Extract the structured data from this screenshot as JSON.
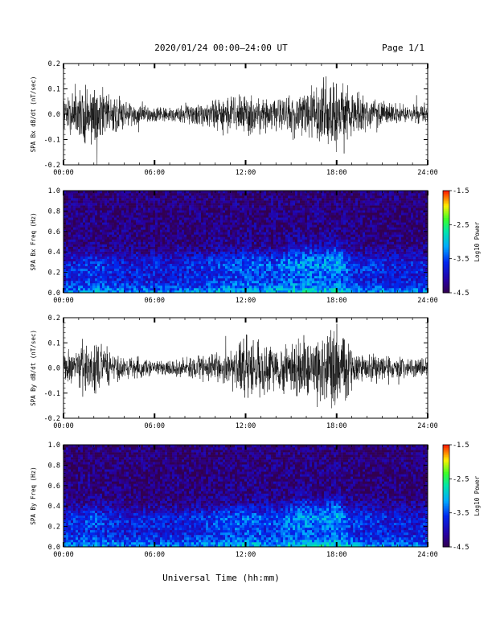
{
  "header": {
    "title": "2020/01/24  00:00–24:00 UT",
    "page": "Page 1/1"
  },
  "xlabel": "Universal Time (hh:mm)",
  "time_ticks": [
    "00:00",
    "06:00",
    "12:00",
    "18:00",
    "24:00"
  ],
  "colors": {
    "trace": "#000000",
    "background": "#ffffff"
  },
  "chart_data": [
    {
      "type": "line",
      "ylabel": "SPA Bx dB/dt (nT/sec)",
      "xlim": [
        0,
        24
      ],
      "ylim": [
        -0.2,
        0.2
      ],
      "y_ticks": [
        "0.2",
        "0.1",
        "0.0",
        "-0.1",
        "-0.2"
      ],
      "x": [
        0,
        1,
        2,
        3,
        4,
        5,
        6,
        7,
        8,
        9,
        10,
        11,
        12,
        13,
        14,
        15,
        16,
        17,
        18,
        19,
        20,
        21,
        22,
        23,
        24
      ],
      "series": [
        {
          "name": "",
          "amplitude": [
            0.06,
            0.11,
            0.14,
            0.08,
            0.06,
            0.04,
            0.03,
            0.03,
            0.04,
            0.05,
            0.06,
            0.07,
            0.08,
            0.08,
            0.07,
            0.09,
            0.1,
            0.13,
            0.16,
            0.09,
            0.06,
            0.05,
            0.04,
            0.04,
            0.04
          ]
        }
      ]
    },
    {
      "type": "heatmap",
      "ylabel": "SPA Bx Freq (Hz)",
      "xlim": [
        0,
        24
      ],
      "ylim": [
        0,
        1.0
      ],
      "y_ticks": [
        "1.0",
        "0.8",
        "0.6",
        "0.4",
        "0.2",
        "0.0"
      ],
      "colorbar": {
        "label": "Log10 Power",
        "ticks": [
          "-1.5",
          "-2.5",
          "-3.5",
          "-4.5"
        ],
        "range": [
          -4.5,
          -1.5
        ]
      },
      "activity": [
        0.1,
        0.2,
        0.3,
        0.2,
        0.1,
        0.1,
        0.1,
        0.1,
        0.15,
        0.2,
        0.3,
        0.4,
        0.5,
        0.45,
        0.4,
        0.6,
        0.7,
        0.6,
        0.8,
        0.3,
        0.2,
        0.15,
        0.1,
        0.1,
        0.1
      ]
    },
    {
      "type": "line",
      "ylabel": "SPA By dB/dt (nT/sec)",
      "xlim": [
        0,
        24
      ],
      "ylim": [
        -0.2,
        0.2
      ],
      "y_ticks": [
        "0.2",
        "0.1",
        "0.0",
        "-0.1",
        "-0.2"
      ],
      "x": [
        0,
        1,
        2,
        3,
        4,
        5,
        6,
        7,
        8,
        9,
        10,
        11,
        12,
        13,
        14,
        15,
        16,
        17,
        18,
        19,
        20,
        21,
        22,
        23,
        24
      ],
      "series": [
        {
          "name": "",
          "amplitude": [
            0.06,
            0.09,
            0.1,
            0.07,
            0.05,
            0.04,
            0.03,
            0.03,
            0.04,
            0.05,
            0.06,
            0.08,
            0.12,
            0.1,
            0.08,
            0.11,
            0.12,
            0.14,
            0.16,
            0.09,
            0.06,
            0.05,
            0.04,
            0.04,
            0.04
          ]
        }
      ]
    },
    {
      "type": "heatmap",
      "ylabel": "SPA By Freq (Hz)",
      "xlim": [
        0,
        24
      ],
      "ylim": [
        0,
        1.0
      ],
      "y_ticks": [
        "1.0",
        "0.8",
        "0.6",
        "0.4",
        "0.2",
        "0.0"
      ],
      "colorbar": {
        "label": "Log10 Power",
        "ticks": [
          "-1.5",
          "-2.5",
          "-3.5",
          "-4.5"
        ],
        "range": [
          -4.5,
          -1.5
        ]
      },
      "activity": [
        0.1,
        0.25,
        0.35,
        0.2,
        0.1,
        0.1,
        0.1,
        0.1,
        0.15,
        0.2,
        0.3,
        0.4,
        0.55,
        0.45,
        0.4,
        0.6,
        0.7,
        0.6,
        0.8,
        0.3,
        0.2,
        0.15,
        0.1,
        0.1,
        0.1
      ]
    }
  ]
}
